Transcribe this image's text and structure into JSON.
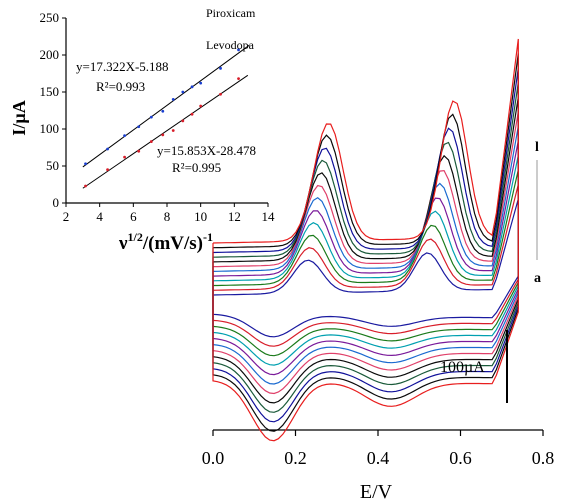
{
  "chart_data": [
    {
      "type": "scatter",
      "role": "inset",
      "xlabel_main": "ν",
      "xlabel_sup": "1/2",
      "xlabel_rest": "/(mV/s)",
      "xlabel_sup2": "-1",
      "ylabel": "I/µA",
      "xlim": [
        2,
        14
      ],
      "ylim": [
        0,
        250
      ],
      "xticks": [
        "2",
        "4",
        "6",
        "8",
        "10",
        "12",
        "14"
      ],
      "yticks": [
        "0",
        "50",
        "100",
        "150",
        "200",
        "250"
      ],
      "series": [
        {
          "name": "Piroxicam",
          "color": "#1a3fd0",
          "x": [
            3.16,
            4.47,
            5.48,
            6.32,
            7.07,
            7.75,
            8.37,
            8.94,
            9.49,
            10.0,
            11.18,
            12.25
          ],
          "y": [
            53,
            73,
            91,
            103,
            116,
            124,
            140,
            150,
            157,
            162,
            182,
            207
          ],
          "fit_label": "y=17.322X-5.188",
          "r2_label": "R²=0.993"
        },
        {
          "name": "Levodopa",
          "color": "#d81e2a",
          "x": [
            3.16,
            4.47,
            5.48,
            6.32,
            7.07,
            7.75,
            8.37,
            8.94,
            9.49,
            10.0,
            11.18,
            12.25
          ],
          "y": [
            23,
            45,
            62,
            70,
            83,
            92,
            98,
            111,
            120,
            131,
            147,
            168
          ],
          "fit_label": "y=15.853X-28.478",
          "r2_label": "R²=0.995"
        }
      ]
    },
    {
      "type": "line",
      "role": "main",
      "xlabel": "E/V",
      "xlim": [
        0.0,
        0.8
      ],
      "xticks": [
        "0.0",
        "0.2",
        "0.4",
        "0.6",
        "0.8"
      ],
      "scale_bar_label": "100µA",
      "curve_label_top": "l",
      "curve_label_bottom": "a",
      "series_count": 12,
      "colors": [
        "#1a1aa0",
        "#d81e2a",
        "#1a7a1a",
        "#00a0b0",
        "#7a1a9a",
        "#1a6ad0",
        "#e0406a",
        "#0a0a0a",
        "#1a5a3a",
        "#10109a",
        "#0a0a0a",
        "#e81e1e"
      ]
    }
  ]
}
